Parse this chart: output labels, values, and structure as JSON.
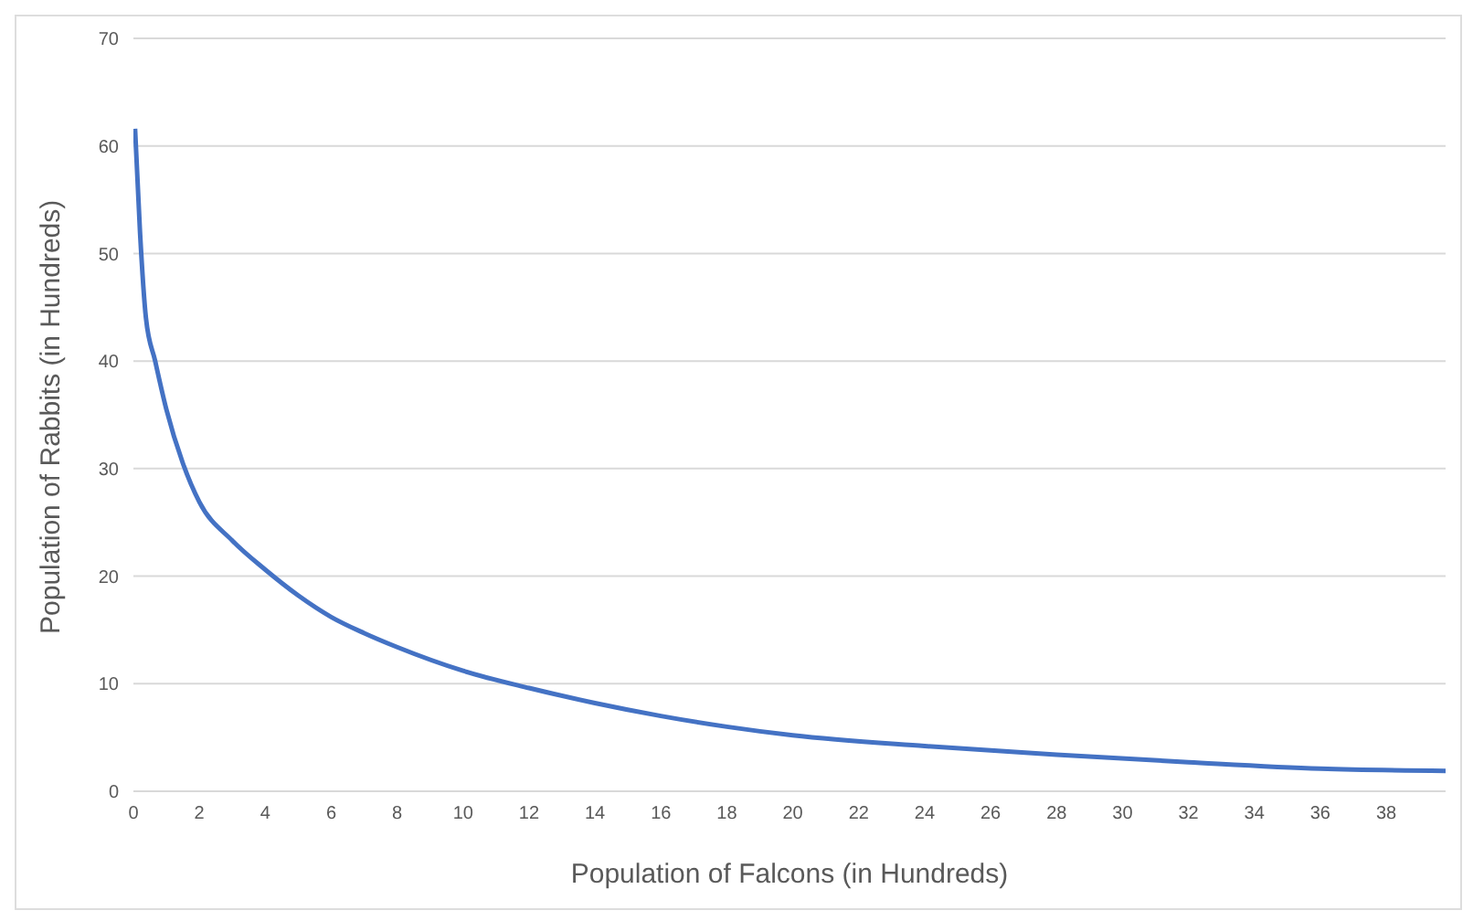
{
  "chart_data": {
    "type": "line",
    "xlabel": "Population of Falcons (in Hundreds)",
    "ylabel": "Population of Rabbits (in Hundreds)",
    "x": [
      0.05,
      0.2,
      0.38,
      0.66,
      1,
      1.5,
      2,
      3,
      4,
      5,
      6,
      7,
      8,
      10,
      12,
      14,
      16,
      18,
      20,
      24,
      28,
      32,
      36,
      39.8
    ],
    "series": [
      {
        "color": "#4472c4",
        "values": [
          61.6,
          52,
          44,
          40,
          35.5,
          30.5,
          26.9,
          23.3,
          20.6,
          18.2,
          16.2,
          14.7,
          13.4,
          11.2,
          9.6,
          8.2,
          7,
          6,
          5.2,
          4.2,
          3.4,
          2.7,
          2.1,
          1.9
        ]
      }
    ],
    "xlim": [
      0,
      39.8
    ],
    "xticks": [
      0,
      2,
      4,
      6,
      8,
      10,
      12,
      14,
      16,
      18,
      20,
      22,
      24,
      26,
      28,
      30,
      32,
      34,
      36,
      38
    ],
    "ylim": [
      0,
      70
    ],
    "yticks": [
      0,
      10,
      20,
      30,
      40,
      50,
      60,
      70
    ],
    "grid": "y",
    "marker": "none",
    "line_style": "solid",
    "legend": false
  }
}
